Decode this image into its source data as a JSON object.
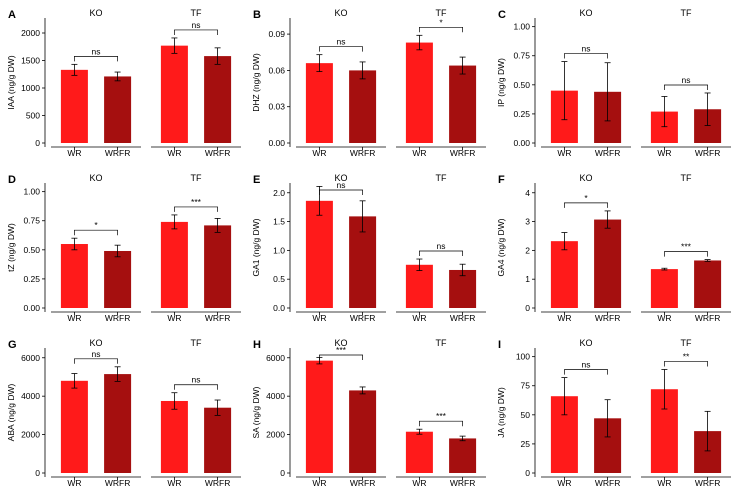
{
  "colors": {
    "wr": "#FF1A1A",
    "wrfr": "#A50F0F",
    "axis": "#000000",
    "error": "#000000"
  },
  "chart_data": [
    {
      "type": "bar",
      "letter": "A",
      "ylabel": "IAA (ng/g DW)",
      "ylim": [
        0,
        2200
      ],
      "yticks": [
        0,
        500,
        1000,
        1500,
        2000
      ],
      "categories": [
        "WR",
        "WRFR"
      ],
      "groups": [
        {
          "title": "KO",
          "values": [
            1330,
            1210
          ],
          "errors": [
            100,
            80
          ],
          "sig": "ns"
        },
        {
          "title": "TF",
          "values": [
            1770,
            1580
          ],
          "errors": [
            140,
            150
          ],
          "sig": "ns"
        }
      ]
    },
    {
      "type": "bar",
      "letter": "B",
      "ylabel": "DHZ (ng/g DW)",
      "ylim": [
        0,
        0.1
      ],
      "yticks": [
        "0.00",
        "0.03",
        "0.06",
        "0.09"
      ],
      "categories": [
        "WR",
        "WRFR"
      ],
      "groups": [
        {
          "title": "KO",
          "values": [
            0.066,
            0.06
          ],
          "errors": [
            0.007,
            0.007
          ],
          "sig": "ns"
        },
        {
          "title": "TF",
          "values": [
            0.083,
            0.064
          ],
          "errors": [
            0.006,
            0.007
          ],
          "sig": "*"
        }
      ]
    },
    {
      "type": "bar",
      "letter": "C",
      "ylabel": "IP (ng/g DW)",
      "ylim": [
        0,
        1.04
      ],
      "yticks": [
        "0.00",
        "0.25",
        "0.50",
        "0.75",
        "1.00"
      ],
      "categories": [
        "WR",
        "WRFR"
      ],
      "groups": [
        {
          "title": "KO",
          "values": [
            0.45,
            0.44
          ],
          "errors": [
            0.25,
            0.25
          ],
          "sig": "ns"
        },
        {
          "title": "TF",
          "values": [
            0.27,
            0.29
          ],
          "errors": [
            0.13,
            0.14
          ],
          "sig": "ns"
        }
      ]
    },
    {
      "type": "bar",
      "letter": "D",
      "ylabel": "tZ (ng/g DW)",
      "ylim": [
        0,
        1.04
      ],
      "yticks": [
        "0.00",
        "0.25",
        "0.50",
        "0.75",
        "1.00"
      ],
      "categories": [
        "WR",
        "WRFR"
      ],
      "groups": [
        {
          "title": "KO",
          "values": [
            0.55,
            0.49
          ],
          "errors": [
            0.05,
            0.05
          ],
          "sig": "*"
        },
        {
          "title": "TF",
          "values": [
            0.74,
            0.71
          ],
          "errors": [
            0.06,
            0.06
          ],
          "sig": "***"
        }
      ]
    },
    {
      "type": "bar",
      "letter": "E",
      "ylabel": "GA1 (ng/g DW)",
      "ylim": [
        0,
        2.1
      ],
      "yticks": [
        "0.0",
        "0.5",
        "1.0",
        "1.5",
        "2.0"
      ],
      "categories": [
        "WR",
        "WRFR"
      ],
      "groups": [
        {
          "title": "KO",
          "values": [
            1.86,
            1.59
          ],
          "errors": [
            0.25,
            0.27
          ],
          "sig": "ns"
        },
        {
          "title": "TF",
          "values": [
            0.75,
            0.66
          ],
          "errors": [
            0.1,
            0.1
          ],
          "sig": "ns"
        }
      ]
    },
    {
      "type": "bar",
      "letter": "F",
      "ylabel": "GA4 (ng/g DW)",
      "ylim": [
        0,
        4.2
      ],
      "yticks": [
        0,
        1,
        2,
        3,
        4
      ],
      "categories": [
        "WR",
        "WRFR"
      ],
      "groups": [
        {
          "title": "KO",
          "values": [
            2.32,
            3.07
          ],
          "errors": [
            0.3,
            0.3
          ],
          "sig": "*"
        },
        {
          "title": "TF",
          "values": [
            1.35,
            1.65
          ],
          "errors": [
            0.03,
            0.03
          ],
          "sig": "***"
        }
      ]
    },
    {
      "type": "bar",
      "letter": "G",
      "ylabel": "ABA (ng/g DW)",
      "ylim": [
        0,
        6300
      ],
      "yticks": [
        0,
        2000,
        4000,
        6000
      ],
      "categories": [
        "WR",
        "WRFR"
      ],
      "groups": [
        {
          "title": "KO",
          "values": [
            4800,
            5150
          ],
          "errors": [
            380,
            380
          ],
          "sig": "ns"
        },
        {
          "title": "TF",
          "values": [
            3750,
            3400
          ],
          "errors": [
            430,
            400
          ],
          "sig": "ns"
        }
      ]
    },
    {
      "type": "bar",
      "letter": "H",
      "ylabel": "SA (ng/g DW)",
      "ylim": [
        0,
        6300
      ],
      "yticks": [
        0,
        2000,
        4000,
        6000
      ],
      "categories": [
        "WR",
        "WRFR"
      ],
      "groups": [
        {
          "title": "KO",
          "values": [
            5850,
            4300
          ],
          "errors": [
            170,
            180
          ],
          "sig": "***"
        },
        {
          "title": "TF",
          "values": [
            2150,
            1800
          ],
          "errors": [
            130,
            120
          ],
          "sig": "***"
        }
      ]
    },
    {
      "type": "bar",
      "letter": "I",
      "ylabel": "JA (ng/g DW)",
      "ylim": [
        0,
        104
      ],
      "yticks": [
        0,
        25,
        50,
        75,
        100
      ],
      "categories": [
        "WR",
        "WRFR"
      ],
      "groups": [
        {
          "title": "KO",
          "values": [
            66,
            47
          ],
          "errors": [
            16,
            16
          ],
          "sig": "ns"
        },
        {
          "title": "TF",
          "values": [
            72,
            36
          ],
          "errors": [
            17,
            17
          ],
          "sig": "**"
        }
      ]
    }
  ]
}
